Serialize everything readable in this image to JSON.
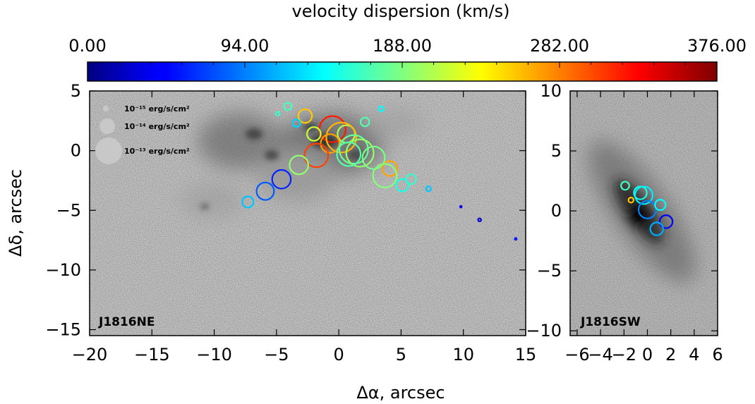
{
  "colorbar": {
    "title": "velocity dispersion (km/s)",
    "ticks": [
      "0.00",
      "94.00",
      "188.00",
      "282.00",
      "376.00"
    ],
    "range": [
      0,
      376
    ]
  },
  "legend": {
    "entries": [
      {
        "label": "10⁻¹⁵ erg/s/cm²"
      },
      {
        "label": "10⁻¹⁴ erg/s/cm²"
      },
      {
        "label": "10⁻¹³ erg/s/cm²"
      }
    ]
  },
  "chart_data": [
    {
      "type": "scatter",
      "panel": "J1816NE",
      "xlabel": "Δα, arcsec",
      "ylabel": "Δδ, arcsec",
      "xlim": [
        -20,
        15
      ],
      "ylim": [
        -15.5,
        5
      ],
      "xticks": [
        "−20",
        "−15",
        "−10",
        "−5",
        "0",
        "5",
        "10",
        "15"
      ],
      "yticks": [
        "5",
        "0",
        "−5",
        "−10",
        "−15"
      ],
      "xtick_values": [
        -20,
        -15,
        -10,
        -5,
        0,
        5,
        10,
        15
      ],
      "ytick_values": [
        5,
        0,
        -5,
        -10,
        -15
      ],
      "size_encoding": "flux",
      "color_encoding": "velocity dispersion (km/s)",
      "points": [
        {
          "x": -4.1,
          "y": 3.7,
          "r": 0.3,
          "sigma": 165
        },
        {
          "x": -4.9,
          "y": 3.1,
          "r": 0.15,
          "sigma": 160
        },
        {
          "x": -2.7,
          "y": 2.9,
          "r": 0.55,
          "sigma": 255
        },
        {
          "x": 3.4,
          "y": 3.5,
          "r": 0.2,
          "sigma": 140
        },
        {
          "x": -3.4,
          "y": 2.3,
          "r": 0.3,
          "sigma": 125
        },
        {
          "x": 2.1,
          "y": 2.4,
          "r": 0.35,
          "sigma": 170
        },
        {
          "x": -0.5,
          "y": 1.8,
          "r": 1.05,
          "sigma": 320
        },
        {
          "x": 0.6,
          "y": 1.4,
          "r": 0.7,
          "sigma": 205
        },
        {
          "x": -2.0,
          "y": 1.4,
          "r": 0.55,
          "sigma": 215
        },
        {
          "x": 0.2,
          "y": 1.1,
          "r": 1.2,
          "sigma": 262
        },
        {
          "x": -0.7,
          "y": 0.6,
          "r": 0.75,
          "sigma": 270
        },
        {
          "x": 1.2,
          "y": 0.1,
          "r": 1.15,
          "sigma": 180
        },
        {
          "x": 1.7,
          "y": -0.2,
          "r": 1.1,
          "sigma": 195
        },
        {
          "x": -1.8,
          "y": -0.4,
          "r": 0.95,
          "sigma": 305
        },
        {
          "x": 0.8,
          "y": -0.3,
          "r": 0.95,
          "sigma": 172
        },
        {
          "x": 2.8,
          "y": -0.6,
          "r": 0.9,
          "sigma": 185
        },
        {
          "x": -3.2,
          "y": -1.2,
          "r": 0.75,
          "sigma": 195
        },
        {
          "x": 4.1,
          "y": -1.5,
          "r": 0.6,
          "sigma": 268
        },
        {
          "x": 3.7,
          "y": -2.1,
          "r": 0.95,
          "sigma": 190
        },
        {
          "x": -4.6,
          "y": -2.4,
          "r": 0.75,
          "sigma": 60
        },
        {
          "x": 5.8,
          "y": -2.4,
          "r": 0.4,
          "sigma": 160
        },
        {
          "x": 5.1,
          "y": -2.9,
          "r": 0.5,
          "sigma": 150
        },
        {
          "x": -5.9,
          "y": -3.4,
          "r": 0.7,
          "sigma": 80
        },
        {
          "x": 7.2,
          "y": -3.2,
          "r": 0.2,
          "sigma": 120
        },
        {
          "x": -7.3,
          "y": -4.3,
          "r": 0.45,
          "sigma": 120
        },
        {
          "x": 9.8,
          "y": -4.7,
          "r": 0.06,
          "sigma": 40
        },
        {
          "x": 11.3,
          "y": -5.8,
          "r": 0.12,
          "sigma": 30
        },
        {
          "x": 14.2,
          "y": -7.4,
          "r": 0.08,
          "sigma": 55
        }
      ]
    },
    {
      "type": "scatter",
      "panel": "J1816SW",
      "xlabel": "",
      "ylabel": "",
      "xlim": [
        -6.6,
        6
      ],
      "ylim": [
        -10.4,
        10
      ],
      "xticks": [
        "−6",
        "−4",
        "−2",
        "0",
        "2",
        "4",
        "6"
      ],
      "yticks": [
        "10",
        "5",
        "0",
        "−5",
        "−10"
      ],
      "xtick_values": [
        -6,
        -4,
        -2,
        0,
        2,
        4,
        6
      ],
      "ytick_values": [
        10,
        5,
        0,
        -5,
        -10
      ],
      "size_encoding": "flux",
      "color_encoding": "velocity dispersion (km/s)",
      "points": [
        {
          "x": -1.9,
          "y": 2.1,
          "r": 0.35,
          "sigma": 165
        },
        {
          "x": -0.6,
          "y": 1.5,
          "r": 0.55,
          "sigma": 150
        },
        {
          "x": -1.4,
          "y": 0.9,
          "r": 0.22,
          "sigma": 258
        },
        {
          "x": -0.3,
          "y": 1.3,
          "r": 0.75,
          "sigma": 135
        },
        {
          "x": 0.0,
          "y": 0.1,
          "r": 0.75,
          "sigma": 95
        },
        {
          "x": 1.1,
          "y": 0.5,
          "r": 0.45,
          "sigma": 140
        },
        {
          "x": 1.6,
          "y": -0.9,
          "r": 0.55,
          "sigma": 45
        },
        {
          "x": 0.8,
          "y": -1.5,
          "r": 0.55,
          "sigma": 110
        }
      ]
    }
  ]
}
